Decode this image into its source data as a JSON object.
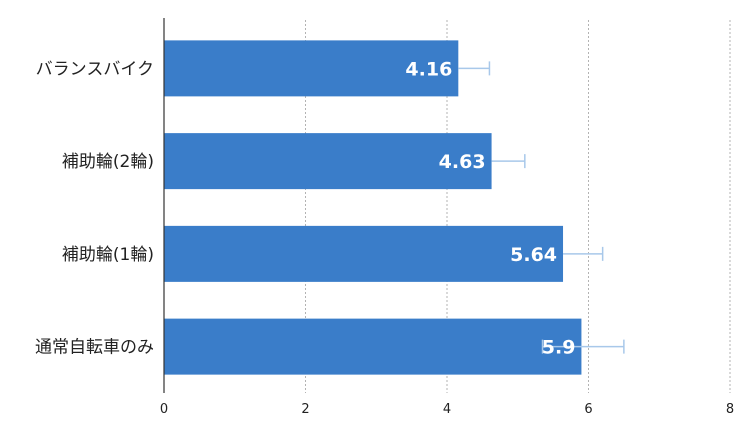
{
  "chart_data": {
    "type": "bar",
    "orientation": "horizontal",
    "categories": [
      "バランスバイク",
      "補助輪(2輪)",
      "補助輪(1輪)",
      "通常自転車のみ"
    ],
    "values": [
      4.16,
      4.63,
      5.64,
      5.9
    ],
    "value_labels": [
      "4.16",
      "4.63",
      "5.64",
      "5.9"
    ],
    "error_bars": [
      {
        "low": 4.16,
        "high": 4.6
      },
      {
        "low": 4.63,
        "high": 5.1
      },
      {
        "low": 5.64,
        "high": 6.2
      },
      {
        "low": 5.35,
        "high": 6.5
      }
    ],
    "xlim": [
      0,
      8
    ],
    "x_ticks": [
      "0",
      "2",
      "4",
      "6",
      "8"
    ],
    "grid": "vertical dashed",
    "bar_color": "#3a7dc9",
    "error_bar_color": "#a8c8ea",
    "title": "",
    "xlabel": "",
    "ylabel": ""
  }
}
